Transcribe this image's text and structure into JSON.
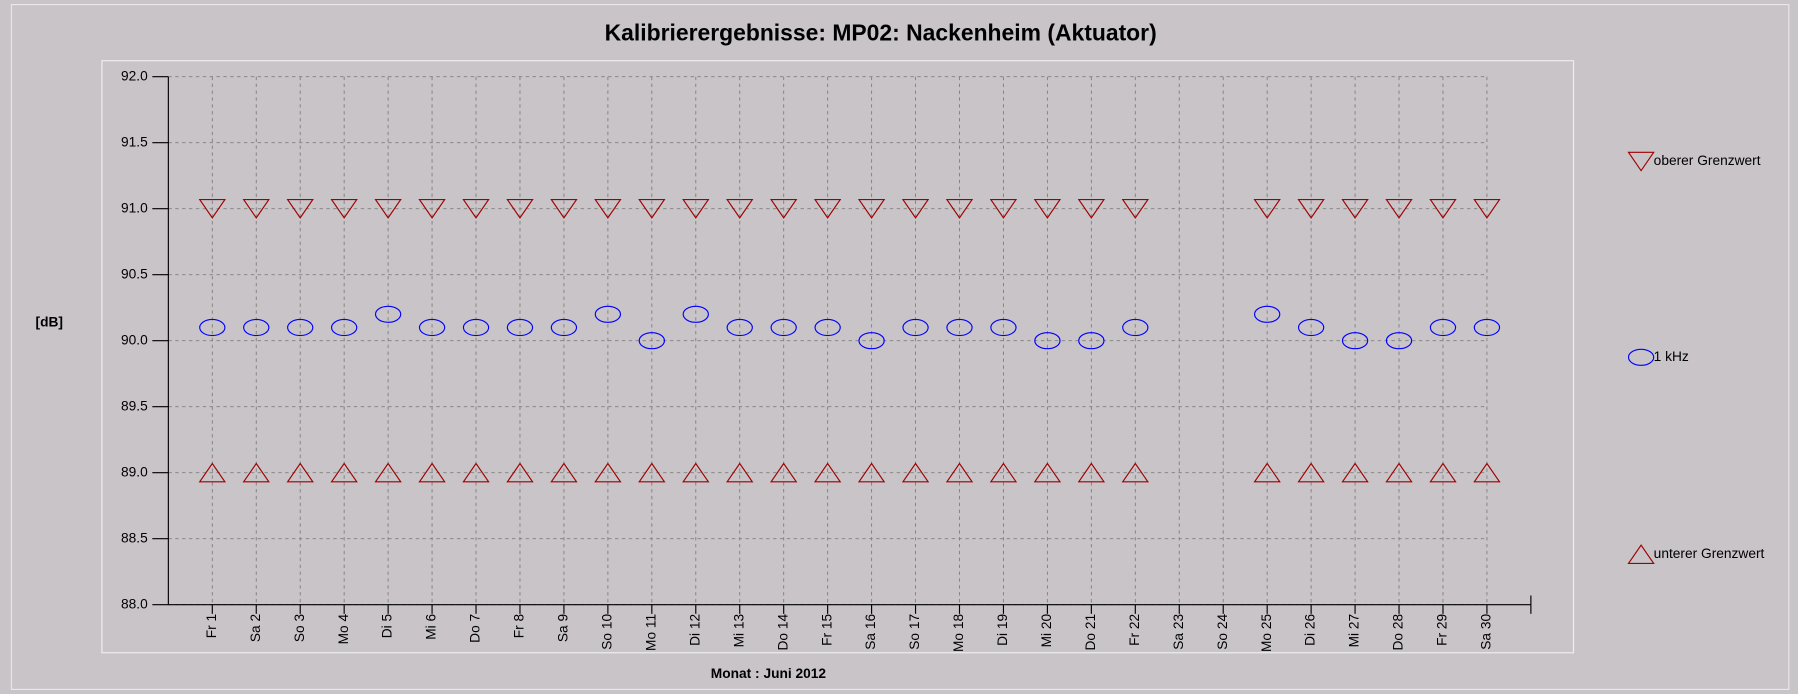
{
  "chart_data": {
    "type": "scatter",
    "title": "Kalibrierergebnisse: MP02: Nackenheim (Aktuator)",
    "y_label": "[dB]",
    "x_label": "Monat : Juni 2012",
    "categories": [
      "Fr 1",
      "Sa 2",
      "So 3",
      "Mo 4",
      "Di 5",
      "Mi 6",
      "Do 7",
      "Fr 8",
      "Sa 9",
      "So 10",
      "Mo 11",
      "Di 12",
      "Mi 13",
      "Do 14",
      "Fr 15",
      "Sa 16",
      "So 17",
      "Mo 18",
      "Di 19",
      "Mi 20",
      "Do 21",
      "Fr 22",
      "Sa 23",
      "So 24",
      "Mo 25",
      "Di 26",
      "Mi 27",
      "Do 28",
      "Fr 29",
      "Sa 30"
    ],
    "series": [
      {
        "name": "oberer Grenzwert",
        "color": "#a00000",
        "marker": "triangle-down",
        "values": [
          91,
          91,
          91,
          91,
          91,
          91,
          91,
          91,
          91,
          91,
          91,
          91,
          91,
          91,
          91,
          91,
          91,
          91,
          91,
          91,
          91,
          91,
          null,
          null,
          91,
          91,
          91,
          91,
          91,
          91
        ]
      },
      {
        "name": "1 kHz",
        "color": "#0000ff",
        "marker": "ellipse",
        "values": [
          90.1,
          90.1,
          90.1,
          90.1,
          90.2,
          90.1,
          90.1,
          90.1,
          90.1,
          90.2,
          90.0,
          90.2,
          90.1,
          90.1,
          90.1,
          90.0,
          90.1,
          90.1,
          90.1,
          90.0,
          90.0,
          90.1,
          null,
          null,
          90.2,
          90.1,
          90.0,
          90.0,
          90.1,
          90.1
        ]
      },
      {
        "name": "unterer Grenzwert",
        "color": "#a00000",
        "marker": "triangle-up",
        "values": [
          89,
          89,
          89,
          89,
          89,
          89,
          89,
          89,
          89,
          89,
          89,
          89,
          89,
          89,
          89,
          89,
          89,
          89,
          89,
          89,
          89,
          89,
          null,
          null,
          89,
          89,
          89,
          89,
          89,
          89
        ]
      }
    ],
    "ylim": [
      88,
      92
    ],
    "yticks": [
      {
        "value": 88,
        "label": "88.0"
      },
      {
        "value": 88.5,
        "label": "88.5"
      },
      {
        "value": 89,
        "label": "89.0"
      },
      {
        "value": 89.5,
        "label": "89.5"
      },
      {
        "value": 90,
        "label": "90.0"
      },
      {
        "value": 90.5,
        "label": "90.5"
      },
      {
        "value": 91,
        "label": "91.0"
      },
      {
        "value": 91.5,
        "label": "91.5"
      },
      {
        "value": 92,
        "label": "92.0"
      }
    ],
    "grid": true,
    "legend": "right"
  }
}
